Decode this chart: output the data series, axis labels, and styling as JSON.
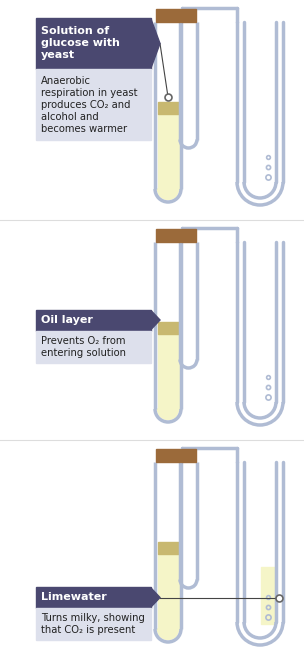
{
  "bg_color": "#ffffff",
  "tube_color": "#b0bcd4",
  "tube_fill": "#f5f5c8",
  "oil_color": "#c8b870",
  "cork_color": "#9b6a3a",
  "label_bg_dark": "#4a4870",
  "label_bg_light": "#dde0ec",
  "tube_lw": 2.5,
  "panels": [
    {
      "label_title": "Solution of\nglucose with\nyeast",
      "label_body": "Anaerobic\nrespiration in yeast\nproduces CO₂ and\nalcohol and\nbecomes warmer",
      "has_pointer_line": true,
      "arrow_to_right": false,
      "right_has_liquid": false,
      "label_pos": "upper"
    },
    {
      "label_title": "Oil layer",
      "label_body": "Prevents O₂ from\nentering solution",
      "has_pointer_line": false,
      "arrow_to_right": false,
      "right_has_liquid": false,
      "label_pos": "mid"
    },
    {
      "label_title": "Limewater",
      "label_body": "Turns milky, showing\nthat CO₂ is present",
      "has_pointer_line": false,
      "arrow_to_right": true,
      "right_has_liquid": true,
      "label_pos": "lower"
    }
  ]
}
